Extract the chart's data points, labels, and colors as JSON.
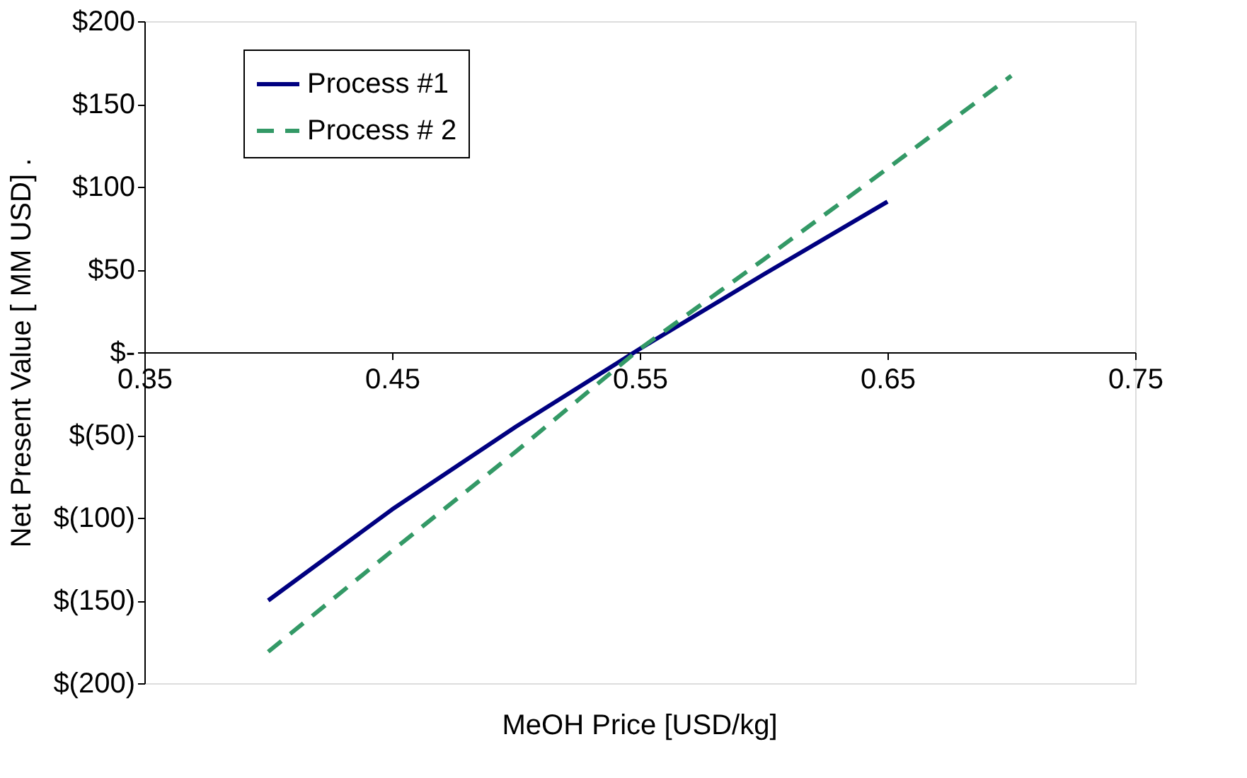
{
  "chart_data": {
    "type": "line",
    "xlabel": "MeOH Price [USD/kg]",
    "ylabel": "Net Present Value [ MM USD]   .",
    "xlim": [
      0.35,
      0.75
    ],
    "xticks": [
      0.35,
      0.45,
      0.55,
      0.65,
      0.75
    ],
    "ylim": [
      -200,
      200
    ],
    "yticks": [
      {
        "value": -200,
        "label": "$(200)"
      },
      {
        "value": -150,
        "label": "$(150)"
      },
      {
        "value": -100,
        "label": "$(100)"
      },
      {
        "value": -50,
        "label": "$(50)"
      },
      {
        "value": 0,
        "label": "$-"
      },
      {
        "value": 50,
        "label": "$50"
      },
      {
        "value": 100,
        "label": "$100"
      },
      {
        "value": 150,
        "label": "$150"
      },
      {
        "value": 200,
        "label": "$200"
      }
    ],
    "grid": false,
    "legend": "top left",
    "marker": "none",
    "series": [
      {
        "name": "Process #1",
        "color": "#000080",
        "line_style": "solid",
        "x": [
          0.4,
          0.45,
          0.5,
          0.55,
          0.6,
          0.65
        ],
        "values": [
          -150,
          -95,
          -45,
          2,
          47,
          91
        ]
      },
      {
        "name": "Process # 2",
        "color": "#339966",
        "line_style": "dashed",
        "x": [
          0.4,
          0.45,
          0.5,
          0.55,
          0.6,
          0.65,
          0.7
        ],
        "values": [
          -181,
          -120,
          -60,
          2,
          56,
          111,
          167
        ]
      }
    ]
  }
}
